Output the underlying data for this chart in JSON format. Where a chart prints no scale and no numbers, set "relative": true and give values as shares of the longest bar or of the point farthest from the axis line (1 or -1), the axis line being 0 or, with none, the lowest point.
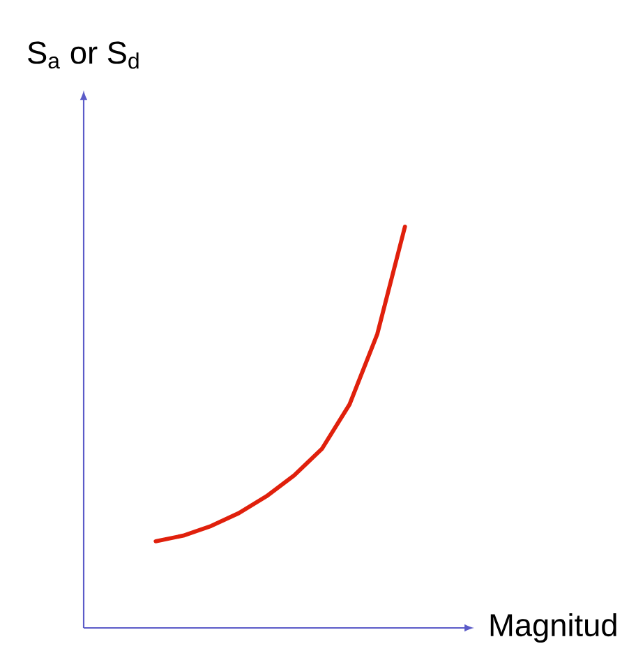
{
  "chart_data": {
    "type": "line",
    "relative": true,
    "xlabel": "Magnitud",
    "ylabel": "S$_{a}$ or S$_{d}$",
    "categories": [
      null,
      null,
      null,
      null,
      null,
      null,
      null,
      null,
      null,
      null
    ],
    "series": [
      {
        "color": "#e0200c",
        "values": [
          0.216,
          0.23,
          0.254,
          0.286,
          0.328,
          0.38,
          0.446,
          0.557,
          0.732,
          1.0
        ]
      }
    ]
  }
}
